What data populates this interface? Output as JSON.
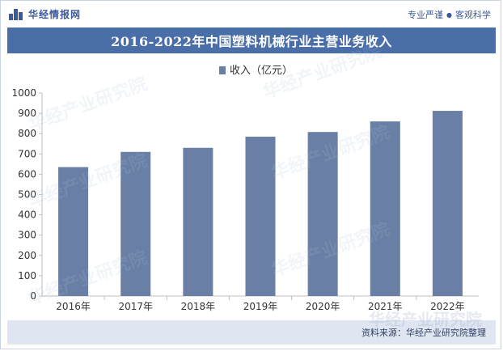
{
  "header": {
    "logo_text": "华经情报网",
    "slogan_left": "专业严谨",
    "slogan_right": "客观科学"
  },
  "watermark": "华经产业研究院",
  "source": "资料来源：华经产业研究院整理",
  "colors": {
    "brand": "#3b5a9a",
    "title_band": "#4a6ea8",
    "bar": "#6a7fa5",
    "footer_band": "#dfe6f1"
  },
  "chart_data": {
    "type": "bar",
    "title": "2016-2022年中国塑料机械行业主营业务收入",
    "categories": [
      "2016年",
      "2017年",
      "2018年",
      "2019年",
      "2020年",
      "2021年",
      "2022年"
    ],
    "series": [
      {
        "name": "收入（亿元）",
        "values": [
          635,
          710,
          730,
          785,
          808,
          860,
          912
        ]
      }
    ],
    "ylim": [
      0,
      1000
    ],
    "yticks": [
      0,
      100,
      200,
      300,
      400,
      500,
      600,
      700,
      800,
      900,
      1000
    ],
    "legend": "top-center",
    "grid": false
  }
}
